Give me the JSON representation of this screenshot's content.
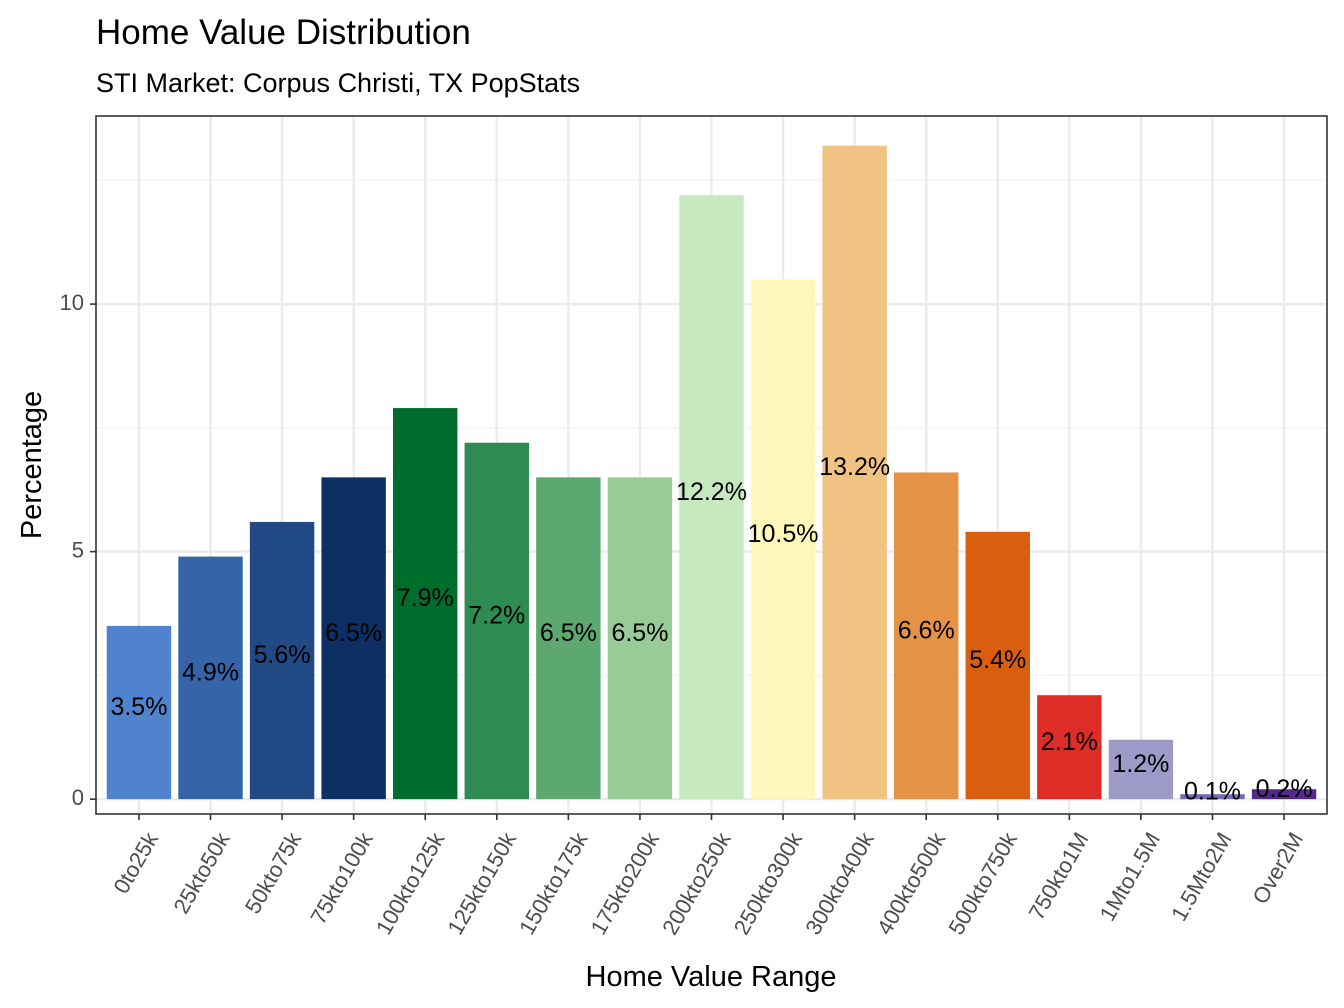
{
  "chart_data": {
    "type": "bar",
    "title": "Home Value Distribution",
    "subtitle": "STI Market: Corpus Christi, TX PopStats",
    "xlabel": "Home Value Range",
    "ylabel": "Percentage",
    "ylim": [
      -0.3,
      13.8
    ],
    "yticks": [
      0,
      5,
      10
    ],
    "ytick_labels": [
      "0",
      "5",
      "10"
    ],
    "grid": true,
    "legend": "none",
    "categories": [
      "0to25k",
      "25kto50k",
      "50kto75k",
      "75kto100k",
      "100kto125k",
      "125kto150k",
      "150kto175k",
      "175kto200k",
      "200kto250k",
      "250kto300k",
      "300kto400k",
      "400kto500k",
      "500kto750k",
      "750kto1M",
      "1Mto1.5M",
      "1.5Mto2M",
      "Over2M"
    ],
    "values": [
      3.5,
      4.9,
      5.6,
      6.5,
      7.9,
      7.2,
      6.5,
      6.5,
      12.2,
      10.5,
      13.2,
      6.6,
      5.4,
      2.1,
      1.2,
      0.1,
      0.2
    ],
    "labels": [
      "3.5%",
      "4.9%",
      "5.6%",
      "6.5%",
      "7.9%",
      "7.2%",
      "6.5%",
      "6.5%",
      "12.2%",
      "10.5%",
      "13.2%",
      "6.6%",
      "5.4%",
      "2.1%",
      "1.2%",
      "0.1%",
      "0.2%"
    ],
    "colors": [
      "#5083CD",
      "#3565A8",
      "#214A85",
      "#0D2F63",
      "#006D2C",
      "#2E8B51",
      "#5CA86F",
      "#97CC97",
      "#C7E9C0",
      "#FFF7BC",
      "#F0C382",
      "#E59247",
      "#DA5E0F",
      "#DE2D26",
      "#9E9AC8",
      "#756BB1",
      "#54278F"
    ]
  }
}
